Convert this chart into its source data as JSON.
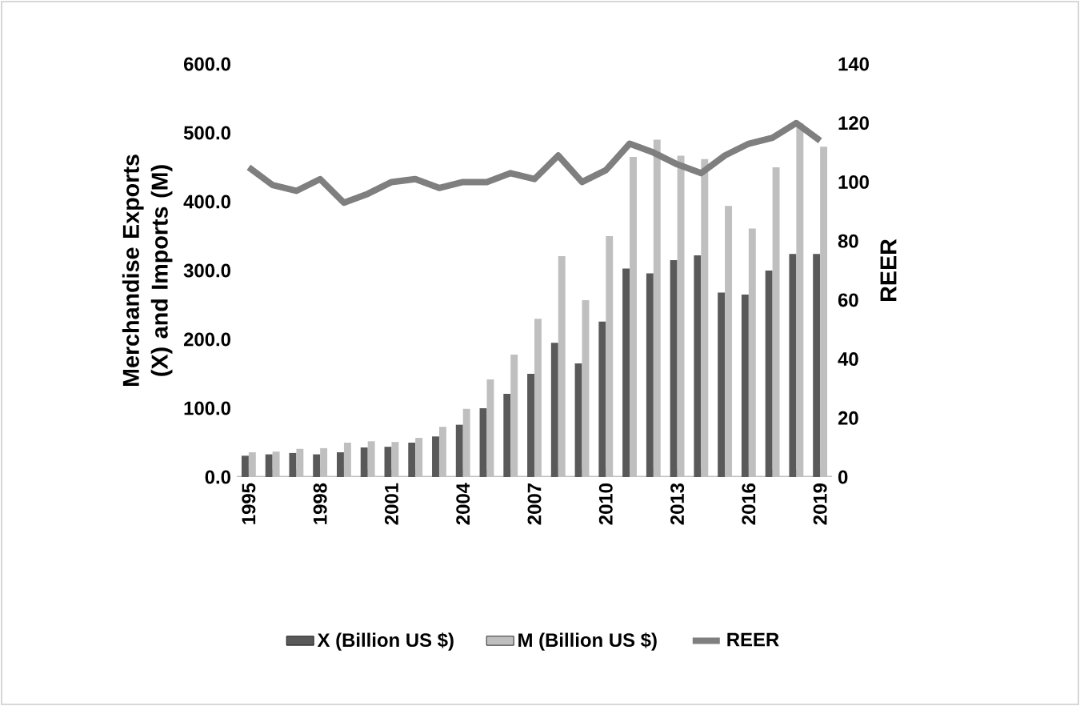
{
  "chart_data": {
    "type": "bar",
    "ylabel": "Merchandise Exports (X) and Imports (M)",
    "y2label": "REER",
    "categories": [
      "1995",
      null,
      null,
      "1998",
      null,
      null,
      "2001",
      null,
      null,
      "2004",
      null,
      null,
      "2007",
      null,
      null,
      "2010",
      null,
      null,
      "2013",
      null,
      null,
      "2016",
      null,
      null,
      "2019"
    ],
    "series": [
      {
        "name": "X (Billion US $)",
        "color": "#595959",
        "values": [
          31,
          33,
          35,
          33,
          36,
          43,
          44,
          50,
          59,
          76,
          100,
          121,
          150,
          195,
          165,
          226,
          303,
          296,
          315,
          322,
          268,
          265,
          300,
          324,
          324
        ]
      },
      {
        "name": "M (Billion US $)",
        "color": "#bfbfbf",
        "values": [
          36,
          37,
          41,
          42,
          50,
          52,
          51,
          57,
          73,
          99,
          142,
          178,
          230,
          321,
          257,
          350,
          465,
          490,
          467,
          462,
          394,
          361,
          450,
          514,
          480
        ]
      },
      {
        "name": "REER",
        "type": "line",
        "axis": "y2",
        "color": "#7f7f7f",
        "values": [
          105,
          99,
          97,
          101,
          93,
          96,
          100,
          101,
          98,
          100,
          100,
          103,
          101,
          109,
          100,
          104,
          113,
          110,
          106,
          103,
          109,
          113,
          115,
          120,
          114
        ]
      }
    ],
    "ylim": [
      0,
      600
    ],
    "yticks": [
      {
        "value": 0,
        "label": "0.0"
      },
      {
        "value": 100,
        "label": "100.0"
      },
      {
        "value": 200,
        "label": "200.0"
      },
      {
        "value": 300,
        "label": "300.0"
      },
      {
        "value": 400,
        "label": "400.0"
      },
      {
        "value": 500,
        "label": "500.0"
      },
      {
        "value": 600,
        "label": "600.0"
      }
    ],
    "y2lim": [
      0,
      140
    ],
    "y2ticks": [
      0,
      20,
      40,
      60,
      80,
      100,
      120,
      140
    ],
    "legend": "bottom",
    "marker": "none",
    "line_style": "solid"
  }
}
